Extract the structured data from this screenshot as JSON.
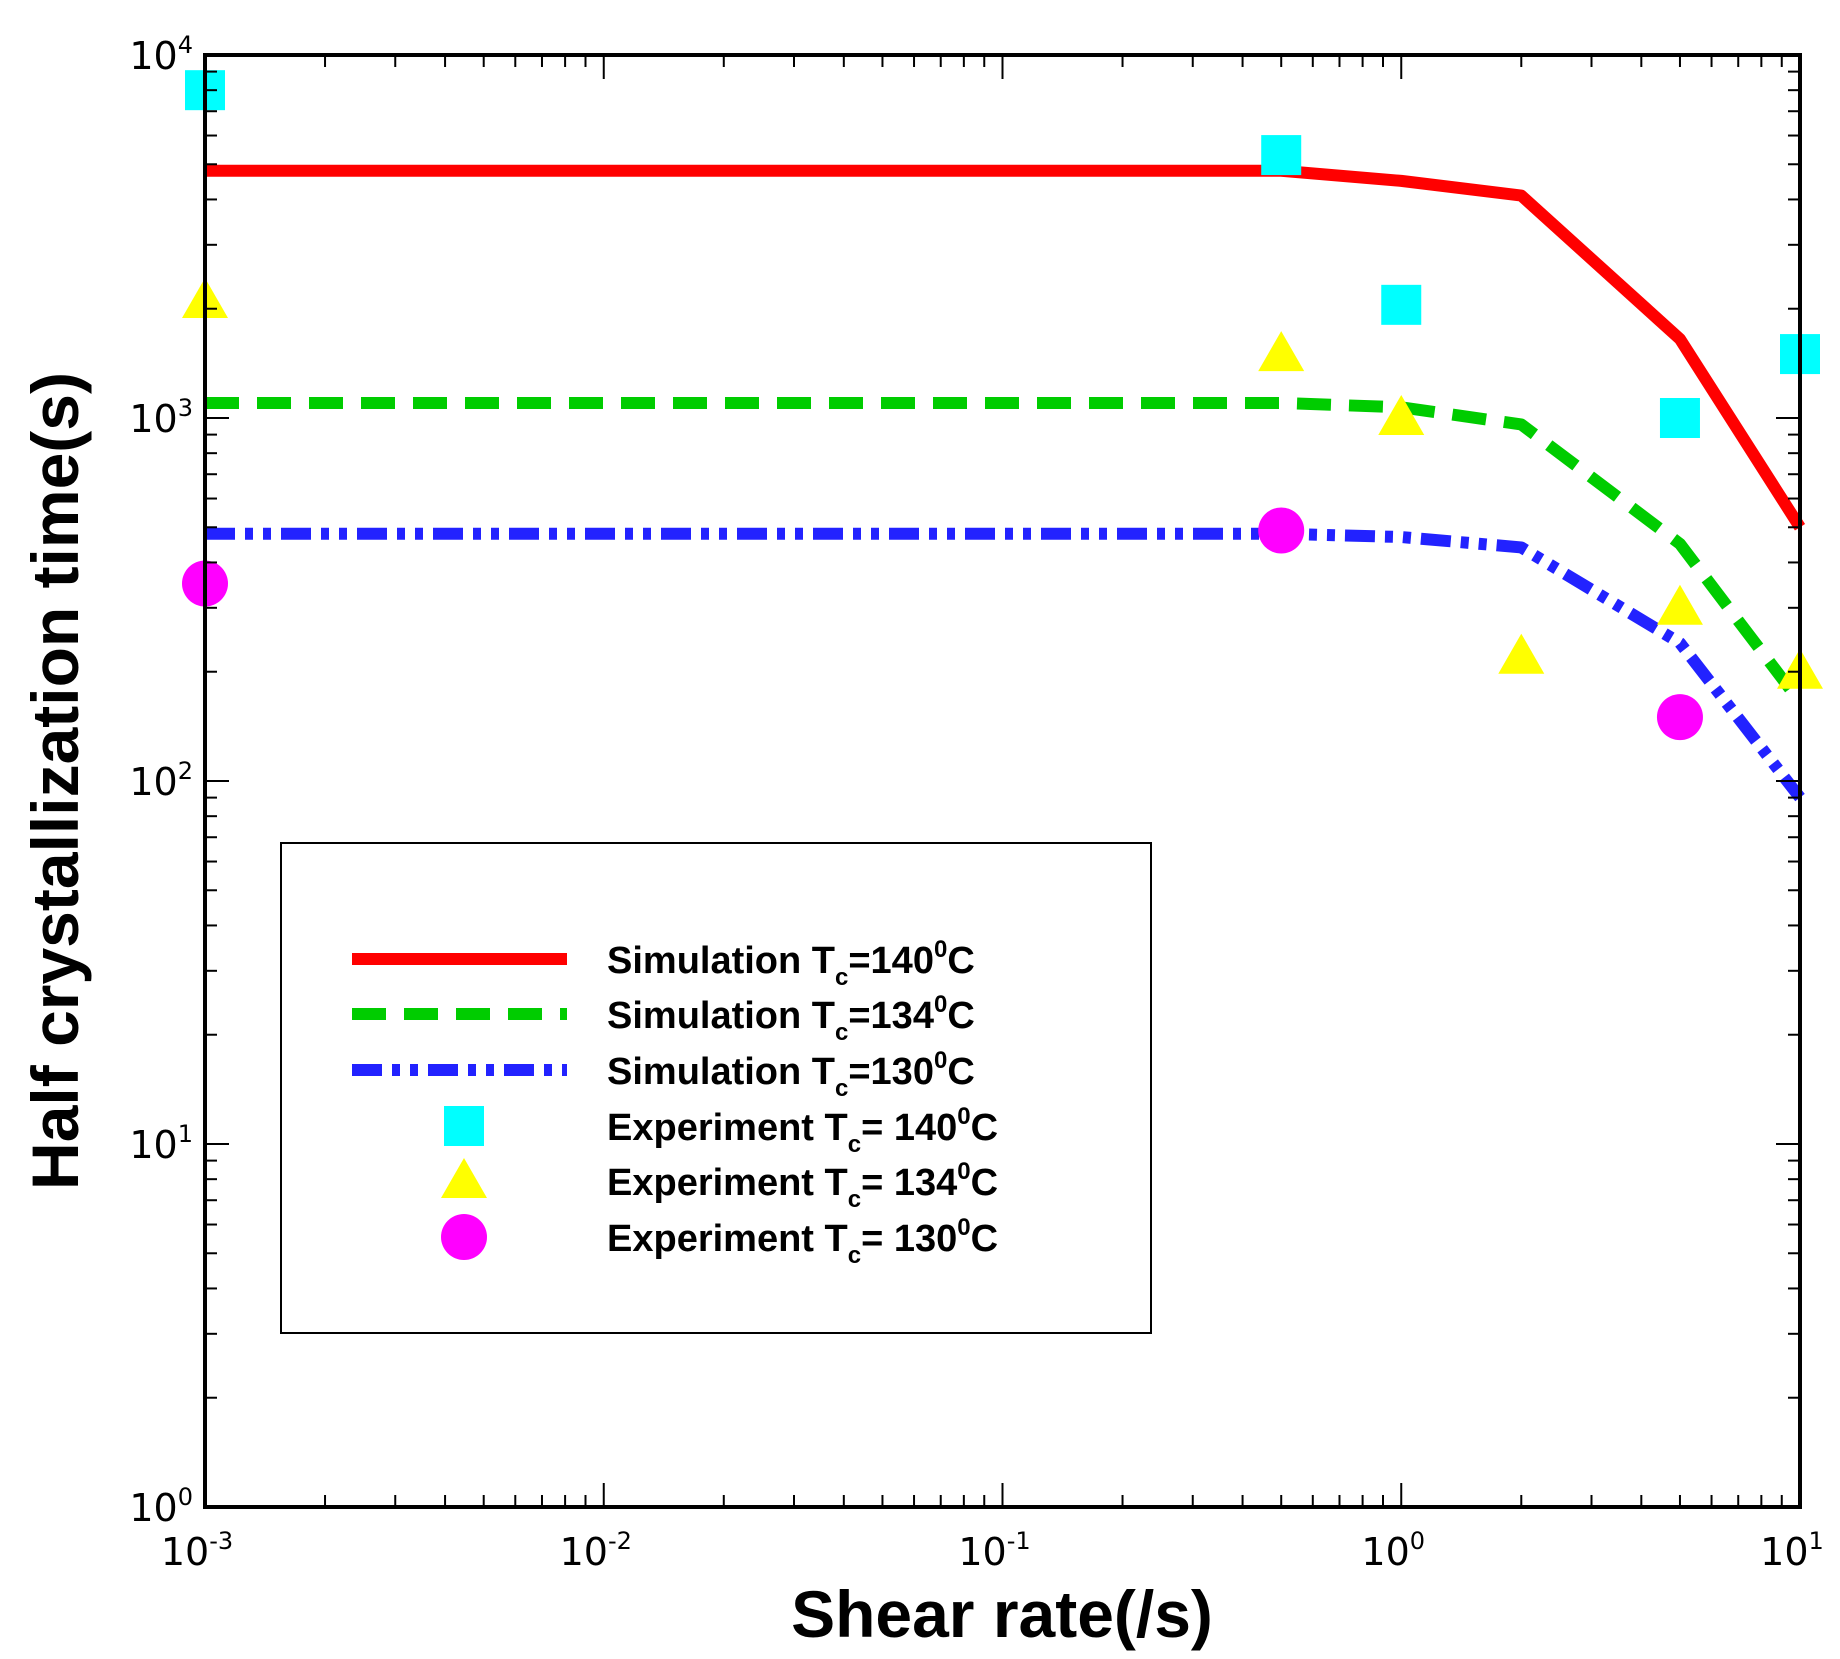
{
  "chart_data": {
    "type": "line",
    "title": "",
    "xlabel": "Shear rate(/s)",
    "ylabel": "Half crystallization time(s)",
    "xscale": "log",
    "yscale": "log",
    "xlim": [
      0.001,
      10
    ],
    "ylim": [
      1,
      10000
    ],
    "grid": false,
    "legend_position": "bottom-left",
    "x_ticks": [
      {
        "base": "10",
        "exp": "-3",
        "value": 0.001
      },
      {
        "base": "10",
        "exp": "-2",
        "value": 0.01
      },
      {
        "base": "10",
        "exp": "-1",
        "value": 0.1
      },
      {
        "base": "10",
        "exp": "0",
        "value": 1
      },
      {
        "base": "10",
        "exp": "1",
        "value": 10
      }
    ],
    "y_ticks": [
      {
        "base": "10",
        "exp": "0",
        "value": 1
      },
      {
        "base": "10",
        "exp": "1",
        "value": 10
      },
      {
        "base": "10",
        "exp": "2",
        "value": 100
      },
      {
        "base": "10",
        "exp": "3",
        "value": 1000
      },
      {
        "base": "10",
        "exp": "4",
        "value": 10000
      }
    ],
    "series": [
      {
        "name": "Simulation T",
        "sub": "c",
        "tail": "=140",
        "sup": "0",
        "unit": "C",
        "kind": "line",
        "dash": "solid",
        "color": "#ff0000",
        "x": [
          0.001,
          0.01,
          0.1,
          0.5,
          1,
          2,
          5,
          10
        ],
        "y": [
          4800,
          4800,
          4800,
          4800,
          4500,
          4100,
          1650,
          500
        ]
      },
      {
        "name": "Simulation T",
        "sub": "c",
        "tail": "=134",
        "sup": "0",
        "unit": "C",
        "kind": "line",
        "dash": "dashed",
        "color": "#00cc00",
        "x": [
          0.001,
          0.01,
          0.1,
          0.5,
          1,
          2,
          5,
          10
        ],
        "y": [
          1100,
          1100,
          1100,
          1100,
          1070,
          960,
          450,
          165
        ]
      },
      {
        "name": "Simulation T",
        "sub": "c",
        "tail": "=130",
        "sup": "0",
        "unit": "C",
        "kind": "line",
        "dash": "dashdotdot",
        "color": "#2222ff",
        "x": [
          0.001,
          0.01,
          0.1,
          0.5,
          1,
          2,
          5,
          10
        ],
        "y": [
          480,
          480,
          480,
          480,
          470,
          440,
          240,
          90
        ]
      },
      {
        "name": "Experiment T",
        "sub": "c",
        "tail": "= 140",
        "sup": "0",
        "unit": "C",
        "kind": "scatter",
        "marker": "square",
        "color": "#00ffff",
        "x": [
          0.001,
          0.5,
          1,
          5,
          10
        ],
        "y": [
          8000,
          5300,
          2050,
          1000,
          1500
        ]
      },
      {
        "name": "Experiment T",
        "sub": "c",
        "tail": "= 134",
        "sup": "0",
        "unit": "C",
        "kind": "scatter",
        "marker": "triangle",
        "color": "#ffff00",
        "x": [
          0.001,
          0.5,
          1,
          2,
          5,
          10
        ],
        "y": [
          2100,
          1500,
          1000,
          220,
          300,
          200
        ]
      },
      {
        "name": "Experiment T",
        "sub": "c",
        "tail": "= 130",
        "sup": "0",
        "unit": "C",
        "kind": "scatter",
        "marker": "circle",
        "color": "#ff00ff",
        "x": [
          0.001,
          0.5,
          5
        ],
        "y": [
          350,
          490,
          150
        ]
      }
    ]
  }
}
